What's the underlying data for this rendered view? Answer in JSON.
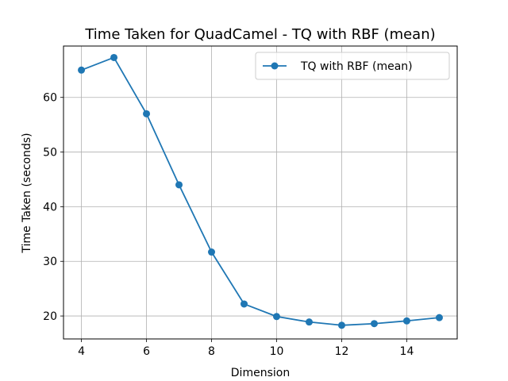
{
  "chart_data": {
    "type": "line",
    "title": "Time Taken for QuadCamel - TQ with RBF (mean)",
    "xlabel": "Dimension",
    "ylabel": "Time Taken (seconds)",
    "xlim": [
      3.45,
      15.55
    ],
    "ylim": [
      15.8,
      69.4
    ],
    "xticks": [
      4,
      6,
      8,
      10,
      12,
      14
    ],
    "yticks": [
      20,
      30,
      40,
      50,
      60
    ],
    "grid": true,
    "legend_position": "top-right",
    "series": [
      {
        "name": "TQ with RBF (mean)",
        "color": "#1f77b4",
        "marker": "circle",
        "x": [
          4,
          5,
          6,
          7,
          8,
          9,
          10,
          11,
          12,
          13,
          14,
          15
        ],
        "y": [
          65.0,
          67.3,
          57.0,
          44.0,
          31.7,
          22.2,
          19.9,
          18.9,
          18.3,
          18.6,
          19.1,
          19.7
        ]
      }
    ]
  }
}
